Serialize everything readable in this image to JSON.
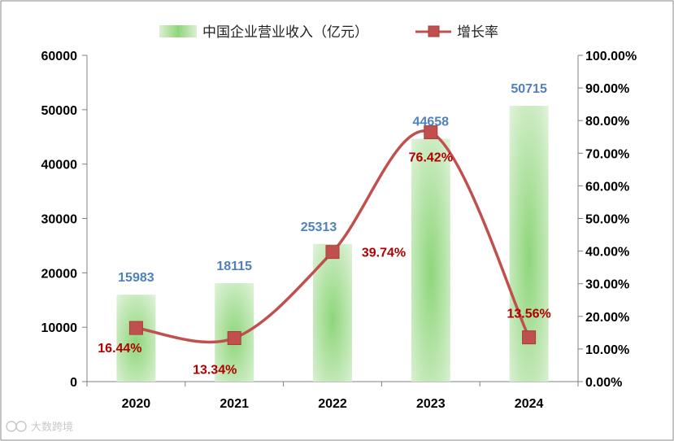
{
  "chart_data": {
    "type": "bar+line",
    "categories": [
      "2020",
      "2021",
      "2022",
      "2023",
      "2024"
    ],
    "series": [
      {
        "name": "中国企业营业收入（亿元）",
        "type": "bar",
        "axis": "left",
        "values": [
          15983,
          18115,
          25313,
          44658,
          50715
        ],
        "labels": [
          "15983",
          "18115",
          "25313",
          "44658",
          "50715"
        ]
      },
      {
        "name": "增长率",
        "type": "line",
        "axis": "right",
        "values": [
          16.44,
          13.34,
          39.74,
          76.42,
          13.56
        ],
        "labels": [
          "16.44%",
          "13.34%",
          "39.74%",
          "76.42%",
          "13.56%"
        ]
      }
    ],
    "y_left": {
      "ylim": [
        0,
        60000
      ],
      "ticks": [
        "0",
        "10000",
        "20000",
        "30000",
        "40000",
        "50000",
        "60000"
      ]
    },
    "y_right": {
      "ylim": [
        0,
        100
      ],
      "ticks": [
        "0.00%",
        "10.00%",
        "20.00%",
        "30.00%",
        "40.00%",
        "50.00%",
        "60.00%",
        "70.00%",
        "80.00%",
        "90.00%",
        "100.00%"
      ]
    },
    "legend_position": "top-center",
    "grid": false
  },
  "colors": {
    "bar_edge": "#dcefd4",
    "bar_center": "#8ed67a",
    "line": "#c0504d",
    "marker_edge": "#a83c3a",
    "bar_label": "#4f81bd",
    "rate_label": "#b00000",
    "axis": "#808080"
  },
  "watermark": {
    "text": "大数跨境",
    "icon": "logo-icon"
  }
}
